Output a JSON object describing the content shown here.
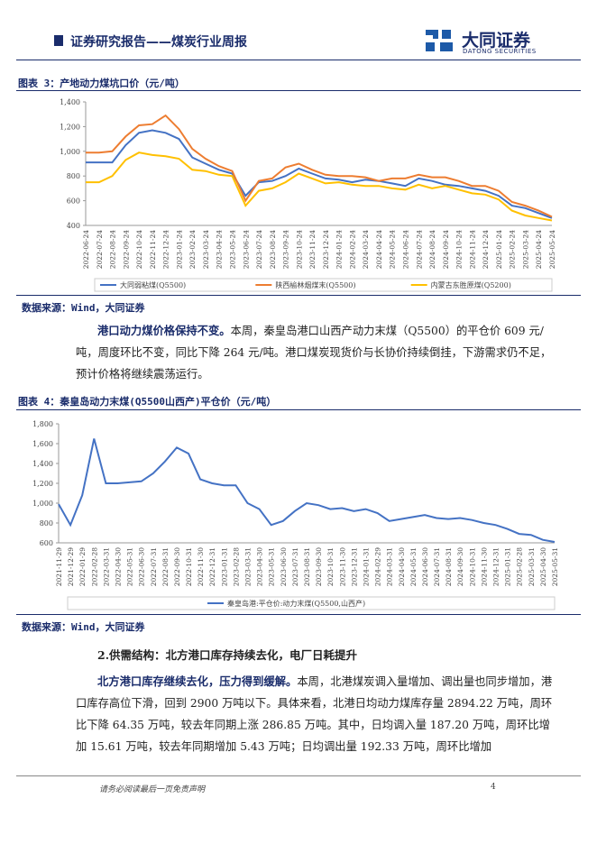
{
  "header": {
    "title": "证券研究报告——煤炭行业周报",
    "logo": "大同证券",
    "logo_en": "DATONG SECURITIES"
  },
  "chart_data": [
    {
      "type": "line",
      "title": "图表 3：产地动力煤坑口价（元/吨）",
      "source": "数据来源：Wind，大同证券",
      "categories": [
        "2022-06-24",
        "2022-07-24",
        "2022-08-24",
        "2022-09-24",
        "2022-10-24",
        "2022-11-24",
        "2022-12-24",
        "2023-01-24",
        "2023-02-24",
        "2023-03-24",
        "2023-04-24",
        "2023-05-24",
        "2023-06-24",
        "2023-07-24",
        "2023-08-24",
        "2023-09-24",
        "2023-10-24",
        "2023-11-24",
        "2023-12-24",
        "2024-01-24",
        "2024-02-24",
        "2024-03-24",
        "2024-04-24",
        "2024-05-24",
        "2024-06-24",
        "2024-07-24",
        "2024-08-24",
        "2024-09-24",
        "2024-10-24",
        "2024-11-24",
        "2024-12-24",
        "2025-01-24",
        "2025-02-24",
        "2025-03-24",
        "2025-04-24",
        "2025-05-24"
      ],
      "series": [
        {
          "name": "大同弱粘煤(Q5500)",
          "color": "#4472c4",
          "values": [
            910,
            910,
            910,
            1050,
            1150,
            1170,
            1150,
            1100,
            950,
            900,
            850,
            820,
            640,
            750,
            760,
            800,
            860,
            820,
            780,
            770,
            750,
            770,
            760,
            740,
            720,
            780,
            760,
            730,
            720,
            700,
            680,
            640,
            560,
            540,
            500,
            460
          ]
        },
        {
          "name": "陕西榆林烟煤末(Q5500)",
          "color": "#ed7d31",
          "values": [
            990,
            990,
            1000,
            1120,
            1210,
            1220,
            1290,
            1180,
            1020,
            940,
            880,
            840,
            600,
            760,
            780,
            870,
            900,
            850,
            810,
            800,
            800,
            790,
            760,
            780,
            780,
            810,
            790,
            790,
            760,
            720,
            720,
            680,
            590,
            560,
            520,
            470
          ]
        },
        {
          "name": "内蒙古东胜原煤(Q5200)",
          "color": "#ffc000",
          "values": [
            750,
            750,
            800,
            930,
            990,
            970,
            960,
            940,
            850,
            840,
            810,
            800,
            560,
            680,
            700,
            750,
            820,
            780,
            740,
            750,
            730,
            720,
            720,
            700,
            690,
            730,
            700,
            720,
            690,
            660,
            650,
            610,
            520,
            480,
            460,
            440
          ]
        }
      ],
      "ylim": [
        400,
        1400
      ],
      "yticks": [
        400,
        600,
        800,
        {
          "value": 1000,
          "label": "1,000"
        },
        {
          "value": 1200,
          "label": "1,200"
        },
        {
          "value": 1400,
          "label": "1,400"
        }
      ]
    },
    {
      "type": "line",
      "title": "图表 4：秦皇岛动力末煤(Q5500山西产)平仓价（元/吨）",
      "source": "数据来源：Wind，大同证券",
      "categories": [
        "2021-11-29",
        "2021-12-29",
        "2022-01-29",
        "2022-02-28",
        "2022-03-31",
        "2022-04-30",
        "2022-05-31",
        "2022-06-30",
        "2022-07-31",
        "2022-08-31",
        "2022-09-30",
        "2022-10-31",
        "2022-11-30",
        "2022-12-31",
        "2023-01-31",
        "2023-02-28",
        "2023-03-31",
        "2023-04-30",
        "2023-05-31",
        "2023-06-30",
        "2023-07-31",
        "2023-08-31",
        "2023-09-30",
        "2023-10-31",
        "2023-11-30",
        "2023-12-31",
        "2024-01-31",
        "2024-02-29",
        "2024-03-31",
        "2024-04-30",
        "2024-05-31",
        "2024-06-30",
        "2024-07-31",
        "2024-08-31",
        "2024-09-30",
        "2024-10-31",
        "2024-11-30",
        "2024-12-31",
        "2025-01-31",
        "2025-02-28",
        "2025-03-31",
        "2025-04-30",
        "2025-05-31"
      ],
      "series": [
        {
          "name": "秦皇岛港:平仓价:动力末煤(Q5500,山西产)",
          "color": "#4472c4",
          "values": [
            990,
            780,
            1080,
            1650,
            1200,
            1200,
            1210,
            1220,
            1300,
            1420,
            1560,
            1500,
            1240,
            1200,
            1180,
            1180,
            1000,
            940,
            780,
            820,
            920,
            1000,
            980,
            940,
            950,
            920,
            940,
            900,
            820,
            840,
            860,
            880,
            850,
            840,
            850,
            830,
            800,
            780,
            740,
            690,
            680,
            630,
            609
          ]
        }
      ],
      "ylim": [
        600,
        1800
      ],
      "yticks": [
        600,
        800,
        {
          "value": 1000,
          "label": "1,000"
        },
        {
          "value": 1200,
          "label": "1,200"
        },
        {
          "value": 1400,
          "label": "1,400"
        },
        {
          "value": 1600,
          "label": "1,600"
        },
        {
          "value": 1800,
          "label": "1,800"
        }
      ]
    }
  ],
  "paragraph1": {
    "lead": "港口动力煤价格保持不变。",
    "text": "本周，秦皇岛港口山西产动力末煤（Q5500）的平仓价 609 元/吨，周度环比不变，同比下降 264 元/吨。港口煤炭现货价与长协价持续倒挂，下游需求仍不足，预计价格将继续震荡运行。"
  },
  "section": {
    "heading": "2.供需结构：北方港口库存持续去化，电厂日耗提升"
  },
  "paragraph2": {
    "lead": "北方港口库存继续去化，压力得到缓解。",
    "text": "本周，北港煤炭调入量增加、调出量也同步增加，港口库存高位下滑，回到 2900 万吨以下。具体来看，北港日均动力煤库存量 2894.22 万吨，周环比下降 64.35 万吨，较去年同期上涨 286.85 万吨。其中，日均调入量 187.20 万吨，周环比增加 15.61 万吨，较去年同期增加 5.43 万吨；日均调出量 192.33 万吨，周环比增加"
  },
  "footer": {
    "note": "请务必阅读最后一页免责声明",
    "page": "4"
  }
}
